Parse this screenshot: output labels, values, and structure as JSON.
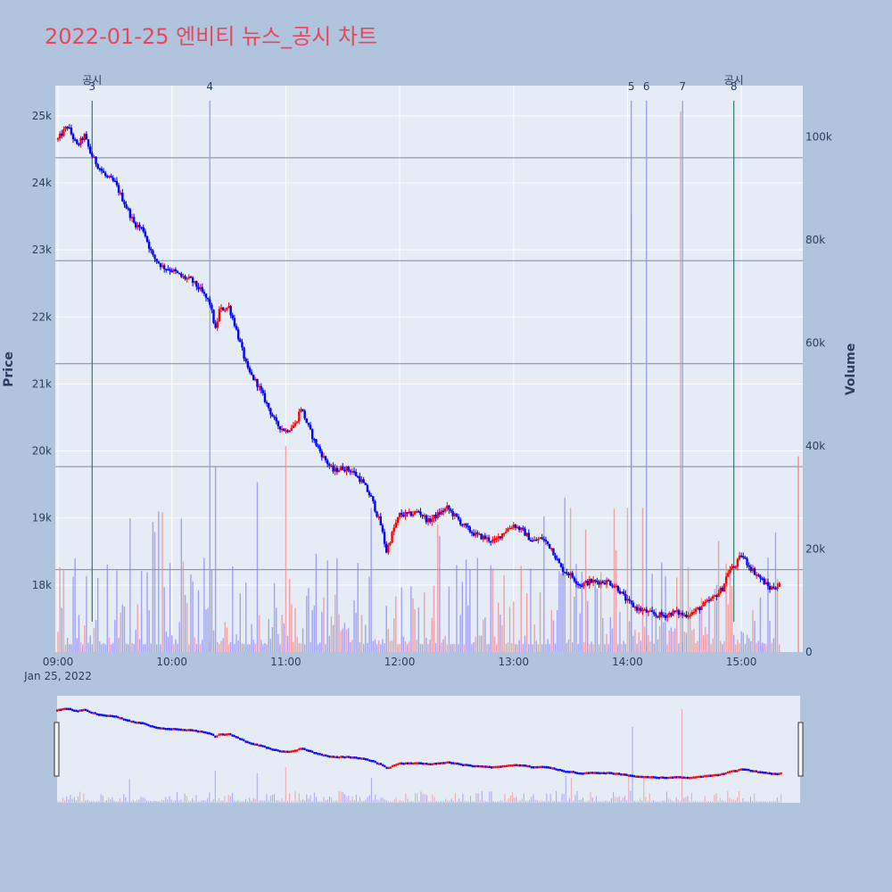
{
  "title": "2022-01-25 엔비티 뉴스_공시 차트",
  "colors": {
    "background": "#b0c4de",
    "plot_bg": "#e5ecf6",
    "title": "#e8475b",
    "up": "#ff0000",
    "down": "#0000ff",
    "news_line": "#8a9ae8",
    "disclosure_line": "#2e7d6b",
    "hline": "#7f8896"
  },
  "chart_data": {
    "type": "candlestick",
    "date_label": "Jan 25, 2022",
    "x_ticks": [
      "09:00",
      "10:00",
      "11:00",
      "12:00",
      "13:00",
      "14:00",
      "15:00"
    ],
    "x_range": [
      "09:00",
      "15:30"
    ],
    "ylabel": "Price",
    "y_ticks": [
      "18k",
      "19k",
      "20k",
      "21k",
      "22k",
      "23k",
      "24k",
      "25k"
    ],
    "y_tick_values": [
      18000,
      19000,
      20000,
      21000,
      22000,
      23000,
      24000,
      25000
    ],
    "y_range": [
      17000,
      25450
    ],
    "y2label": "Volume",
    "y2_ticks": [
      "0",
      "20k",
      "40k",
      "60k",
      "80k",
      "100k"
    ],
    "y2_tick_values": [
      0,
      20000,
      40000,
      60000,
      80000,
      100000
    ],
    "y2_range": [
      0,
      110000
    ],
    "price_path": [
      [
        "09:00",
        24650
      ],
      [
        "09:05",
        24850
      ],
      [
        "09:10",
        24550
      ],
      [
        "09:14",
        24700
      ],
      [
        "09:17",
        24450
      ],
      [
        "09:20",
        24300
      ],
      [
        "09:25",
        24100
      ],
      [
        "09:30",
        24000
      ],
      [
        "09:35",
        23700
      ],
      [
        "09:40",
        23400
      ],
      [
        "09:45",
        23300
      ],
      [
        "09:48",
        23050
      ],
      [
        "09:50",
        22900
      ],
      [
        "09:55",
        22750
      ],
      [
        "10:00",
        22700
      ],
      [
        "10:05",
        22600
      ],
      [
        "10:10",
        22550
      ],
      [
        "10:15",
        22400
      ],
      [
        "10:20",
        22200
      ],
      [
        "10:23",
        21800
      ],
      [
        "10:25",
        22100
      ],
      [
        "10:30",
        22150
      ],
      [
        "10:33",
        21900
      ],
      [
        "10:36",
        21600
      ],
      [
        "10:40",
        21200
      ],
      [
        "10:45",
        21000
      ],
      [
        "10:50",
        20700
      ],
      [
        "10:55",
        20400
      ],
      [
        "11:00",
        20300
      ],
      [
        "11:05",
        20400
      ],
      [
        "11:08",
        20650
      ],
      [
        "11:12",
        20350
      ],
      [
        "11:15",
        20150
      ],
      [
        "11:20",
        19900
      ],
      [
        "11:25",
        19700
      ],
      [
        "11:30",
        19750
      ],
      [
        "11:35",
        19700
      ],
      [
        "11:40",
        19550
      ],
      [
        "11:45",
        19300
      ],
      [
        "11:50",
        18900
      ],
      [
        "11:53",
        18500
      ],
      [
        "11:57",
        18850
      ],
      [
        "12:00",
        19050
      ],
      [
        "12:05",
        19050
      ],
      [
        "12:10",
        19100
      ],
      [
        "12:15",
        18950
      ],
      [
        "12:20",
        19050
      ],
      [
        "12:25",
        19150
      ],
      [
        "12:30",
        19000
      ],
      [
        "12:35",
        18850
      ],
      [
        "12:40",
        18750
      ],
      [
        "12:45",
        18700
      ],
      [
        "12:50",
        18650
      ],
      [
        "12:55",
        18800
      ],
      [
        "13:00",
        18900
      ],
      [
        "13:05",
        18800
      ],
      [
        "13:10",
        18650
      ],
      [
        "13:15",
        18700
      ],
      [
        "13:20",
        18550
      ],
      [
        "13:25",
        18250
      ],
      [
        "13:30",
        18150
      ],
      [
        "13:35",
        18000
      ],
      [
        "13:40",
        18050
      ],
      [
        "13:45",
        18050
      ],
      [
        "13:50",
        18050
      ],
      [
        "13:55",
        17950
      ],
      [
        "14:00",
        17750
      ],
      [
        "14:05",
        17650
      ],
      [
        "14:10",
        17600
      ],
      [
        "14:15",
        17550
      ],
      [
        "14:20",
        17550
      ],
      [
        "14:25",
        17600
      ],
      [
        "14:30",
        17550
      ],
      [
        "14:35",
        17600
      ],
      [
        "14:40",
        17700
      ],
      [
        "14:45",
        17800
      ],
      [
        "14:50",
        17950
      ],
      [
        "14:53",
        18200
      ],
      [
        "14:57",
        18300
      ],
      [
        "15:00",
        18450
      ],
      [
        "15:05",
        18250
      ],
      [
        "15:10",
        18100
      ],
      [
        "15:15",
        17950
      ],
      [
        "15:20",
        18000
      ],
      [
        "15:25",
        18000
      ]
    ],
    "volume_spikes": [
      [
        "14:02",
        85000
      ],
      [
        "14:28",
        105000
      ],
      [
        "15:30",
        38000
      ],
      [
        "10:23",
        36000
      ],
      [
        "11:00",
        40000
      ],
      [
        "10:45",
        33000
      ],
      [
        "11:45",
        28000
      ],
      [
        "14:00",
        28000
      ],
      [
        "13:27",
        30000
      ],
      [
        "13:30",
        28000
      ],
      [
        "14:08",
        28000
      ],
      [
        "09:38",
        26000
      ]
    ],
    "hlines": [
      16000,
      36000,
      56000,
      76000,
      96000
    ],
    "annotations": [
      {
        "time": "09:18",
        "label": "3",
        "kind": "disclosure",
        "text": "공시"
      },
      {
        "time": "10:20",
        "label": "4",
        "kind": "news"
      },
      {
        "time": "14:02",
        "label": "5",
        "kind": "news"
      },
      {
        "time": "14:10",
        "label": "6",
        "kind": "news"
      },
      {
        "time": "14:29",
        "label": "7",
        "kind": "news"
      },
      {
        "time": "14:56",
        "label": "8",
        "kind": "disclosure",
        "text": "공시"
      }
    ]
  }
}
